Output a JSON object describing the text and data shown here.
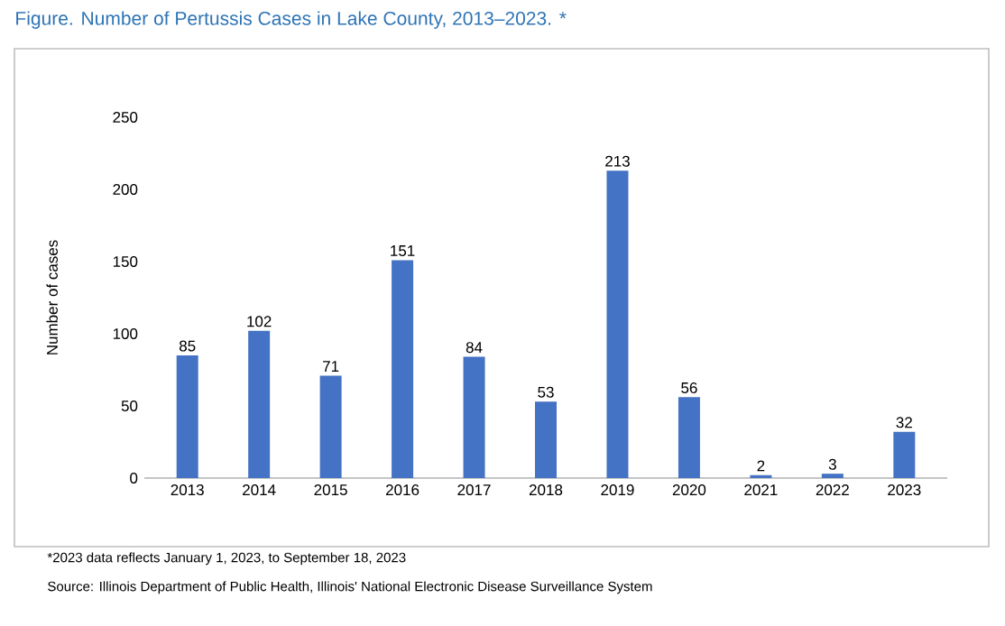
{
  "chart_data": {
    "type": "bar",
    "title": "Figure.  Number of Pertussis Cases in Lake County, 2013–2023. *",
    "ylabel": "Number of cases",
    "categories": [
      "2013",
      "2014",
      "2015",
      "2016",
      "2017",
      "2018",
      "2019",
      "2020",
      "2021",
      "2022",
      "2023"
    ],
    "values": [
      85,
      102,
      71,
      151,
      84,
      53,
      213,
      56,
      2,
      3,
      32
    ],
    "color": "#4472c4",
    "ylim": [
      0,
      250
    ],
    "yticks": [
      0,
      50,
      100,
      150,
      200,
      250
    ],
    "data_labels": true,
    "annotations": [
      "*2023 data reflects January 1, 2023, to September 18, 2023",
      "Source: Illinois Department of Public Health, Illinois' National Electronic Disease Surveillance System"
    ]
  }
}
